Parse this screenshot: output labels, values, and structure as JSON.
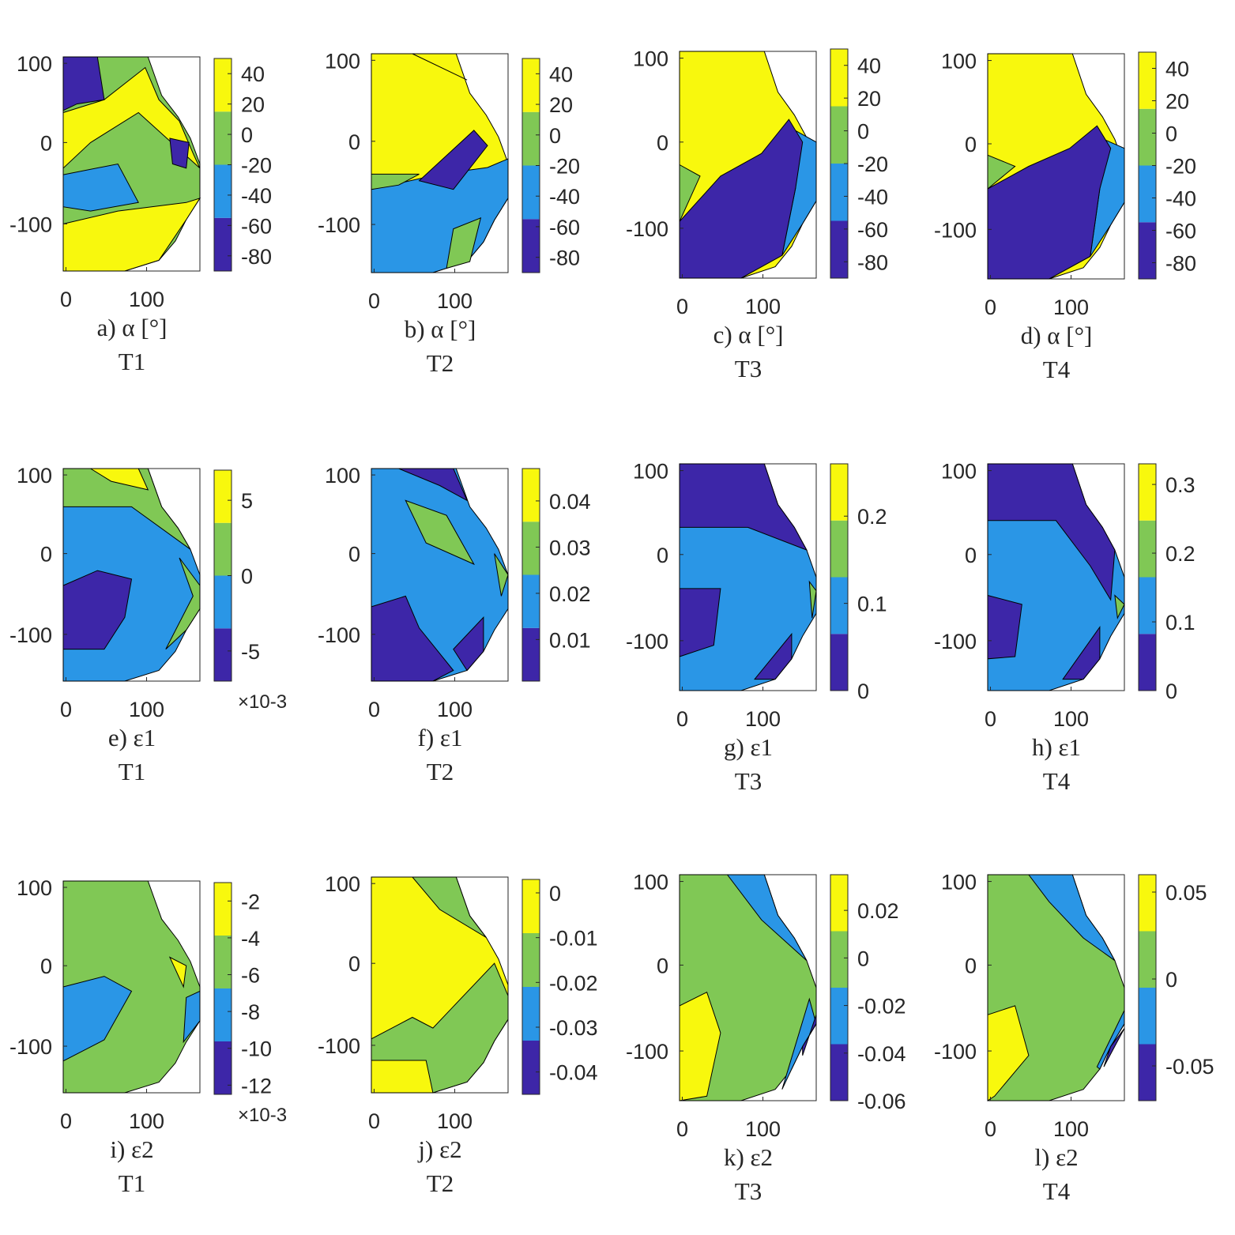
{
  "palette": {
    "level1": "#3D26A8",
    "level2": "#2A96E6",
    "level3": "#80C855",
    "level4": "#F8F80D"
  },
  "chart_data": [
    {
      "id": "a",
      "type": "contour",
      "caption": "a) α [°]",
      "test": "T1",
      "xticks": [
        "0",
        "100"
      ],
      "yticks": [
        "100",
        "0",
        "-100"
      ],
      "colorbar": {
        "ticks": [
          "40",
          "20",
          "0",
          "-20",
          "-40",
          "-60",
          "-80"
        ],
        "multiplier": "",
        "levels": [
          -90,
          -60,
          -40,
          -20,
          0,
          20,
          50
        ]
      }
    },
    {
      "id": "b",
      "type": "contour",
      "caption": "b) α [°]",
      "test": "T2",
      "xticks": [
        "0",
        "100"
      ],
      "yticks": [
        "100",
        "0",
        "-100"
      ],
      "colorbar": {
        "ticks": [
          "40",
          "20",
          "0",
          "-20",
          "-40",
          "-60",
          "-80"
        ],
        "multiplier": "",
        "levels": [
          -90,
          -60,
          -40,
          -20,
          0,
          20,
          50
        ]
      }
    },
    {
      "id": "c",
      "type": "contour",
      "caption": "c) α [°]",
      "test": "T3",
      "xticks": [
        "0",
        "100"
      ],
      "yticks": [
        "100",
        "0",
        "-100"
      ],
      "colorbar": {
        "ticks": [
          "40",
          "20",
          "0",
          "-20",
          "-40",
          "-60",
          "-80"
        ],
        "multiplier": "",
        "levels": [
          -90,
          -60,
          -40,
          -20,
          0,
          20,
          50
        ]
      }
    },
    {
      "id": "d",
      "type": "contour",
      "caption": "d) α [°]",
      "test": "T4",
      "xticks": [
        "0",
        "100"
      ],
      "yticks": [
        "100",
        "0",
        "-100"
      ],
      "colorbar": {
        "ticks": [
          "40",
          "20",
          "0",
          "-20",
          "-40",
          "-60",
          "-80"
        ],
        "multiplier": "",
        "levels": [
          -90,
          -60,
          -40,
          -20,
          0,
          20,
          50
        ]
      }
    },
    {
      "id": "e",
      "type": "contour",
      "caption": "e) ε1",
      "test": "T1",
      "xticks": [
        "0",
        "100"
      ],
      "yticks": [
        "100",
        "0",
        "-100"
      ],
      "colorbar": {
        "ticks": [
          "5",
          "0",
          "-5"
        ],
        "multiplier": "×10-3",
        "levels": [
          -7,
          -3,
          2,
          4,
          7
        ]
      }
    },
    {
      "id": "f",
      "type": "contour",
      "caption": "f) ε1",
      "test": "T2",
      "xticks": [
        "0",
        "100"
      ],
      "yticks": [
        "100",
        "0",
        "-100"
      ],
      "colorbar": {
        "ticks": [
          "0.04",
          "0.03",
          "0.02",
          "0.01"
        ],
        "multiplier": "",
        "levels": [
          0.001,
          0.015,
          0.025,
          0.035,
          0.047
        ]
      }
    },
    {
      "id": "g",
      "type": "contour",
      "caption": "g) ε1",
      "test": "T3",
      "xticks": [
        "0",
        "100"
      ],
      "yticks": [
        "100",
        "0",
        "-100"
      ],
      "colorbar": {
        "ticks": [
          "0.2",
          "0.1",
          "0"
        ],
        "multiplier": "",
        "levels": [
          0,
          0.05,
          0.13,
          0.18,
          0.26
        ]
      }
    },
    {
      "id": "h",
      "type": "contour",
      "caption": "h) ε1",
      "test": "T4",
      "xticks": [
        "0",
        "100"
      ],
      "yticks": [
        "100",
        "0",
        "-100"
      ],
      "colorbar": {
        "ticks": [
          "0.3",
          "0.2",
          "0.1",
          "0"
        ],
        "multiplier": "",
        "levels": [
          0,
          0.05,
          0.13,
          0.25,
          0.33
        ]
      }
    },
    {
      "id": "i",
      "type": "contour",
      "caption": "i) ε2",
      "test": "T1",
      "xticks": [
        "0",
        "100"
      ],
      "yticks": [
        "100",
        "0",
        "-100"
      ],
      "colorbar": {
        "ticks": [
          "-2",
          "-4",
          "-6",
          "-8",
          "-10",
          "-12"
        ],
        "multiplier": "×10-3",
        "levels": [
          -12.5,
          -9.5,
          -7,
          -4,
          -1
        ]
      }
    },
    {
      "id": "j",
      "type": "contour",
      "caption": "j) ε2",
      "test": "T2",
      "xticks": [
        "0",
        "100"
      ],
      "yticks": [
        "100",
        "0",
        "-100"
      ],
      "colorbar": {
        "ticks": [
          "0",
          "-0.01",
          "-0.02",
          "-0.03",
          "-0.04"
        ],
        "multiplier": "",
        "levels": [
          -0.045,
          -0.035,
          -0.025,
          -0.015,
          0.003
        ]
      }
    },
    {
      "id": "k",
      "type": "contour",
      "caption": "k) ε2",
      "test": "T3",
      "xticks": [
        "0",
        "100"
      ],
      "yticks": [
        "100",
        "0",
        "-100"
      ],
      "colorbar": {
        "ticks": [
          "0.02",
          "0",
          "-0.02",
          "-0.04",
          "-0.06"
        ],
        "multiplier": "",
        "levels": [
          -0.06,
          -0.04,
          -0.02,
          0.01,
          0.035
        ]
      }
    },
    {
      "id": "l",
      "type": "contour",
      "caption": "l) ε2",
      "test": "T4",
      "xticks": [
        "0",
        "100"
      ],
      "yticks": [
        "100",
        "0",
        "-100"
      ],
      "colorbar": {
        "ticks": [
          "0.05",
          "0",
          "-0.05"
        ],
        "multiplier": "",
        "levels": [
          -0.07,
          -0.035,
          -0.005,
          0.025,
          0.06
        ]
      }
    }
  ]
}
